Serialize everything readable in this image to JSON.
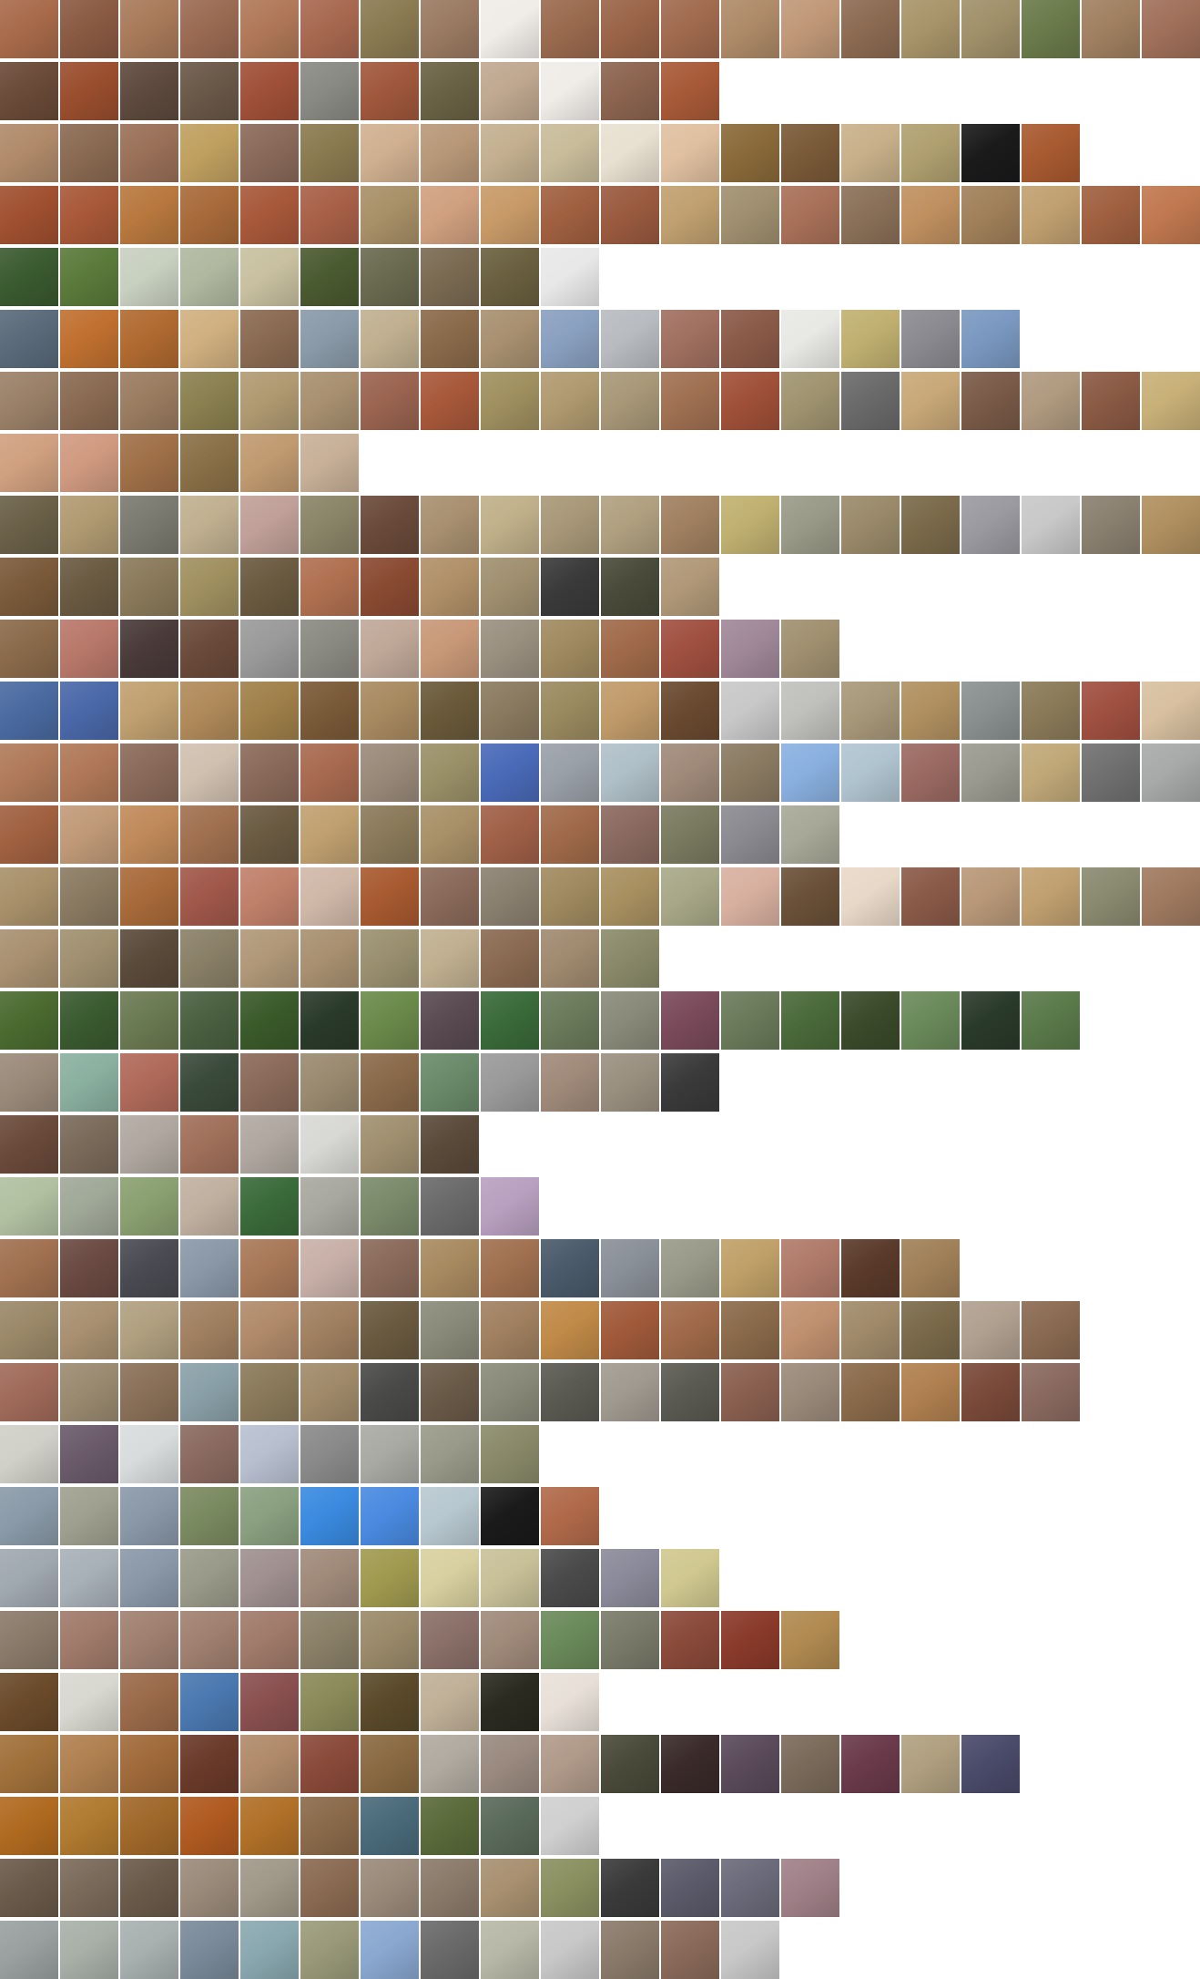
{
  "mosaic": {
    "description_free": true,
    "rows": [
      {
        "count": 20,
        "colors": [
          "#a86a4a",
          "#8a5a42",
          "#a87a5a",
          "#9a6a52",
          "#b07858",
          "#a86850",
          "#8a7a52",
          "#9a7a62",
          "#f0ece8",
          "#9a6a4e",
          "#9a6448",
          "#a06a4e",
          "#ae8a68",
          "#c09878",
          "#8c6a52",
          "#a8946a",
          "#a0906a",
          "#6a7a4a",
          "#a08060",
          "#a0705a"
        ]
      },
      {
        "count": 12,
        "colors": [
          "#6a4a38",
          "#9a4e2e",
          "#5e4a3e",
          "#6a5848",
          "#a05038",
          "#8a8a84",
          "#a0583c",
          "#6a6244",
          "#c0a890",
          "#f0ece8",
          "#8c6450",
          "#a85a38"
        ]
      },
      {
        "count": 18,
        "colors": [
          "#b08a6a",
          "#8a6a52",
          "#9a7058",
          "#c0a060",
          "#8a6a5a",
          "#8a7a50",
          "#d0b090",
          "#b89878",
          "#c4b090",
          "#c8bc9a",
          "#e8e0d0",
          "#e0c0a0",
          "#8a6a3a",
          "#7a5a38",
          "#c8b08a",
          "#b0a070",
          "#1a1a1a",
          "#a85a30"
        ]
      },
      {
        "count": 20,
        "colors": [
          "#a05030",
          "#a85838",
          "#b8783e",
          "#a86a3a",
          "#a8583a",
          "#a86048",
          "#a89068",
          "#d0a080",
          "#c89a68",
          "#a06040",
          "#9a5a40",
          "#c0a070",
          "#a09070",
          "#a87058",
          "#8a7058",
          "#c09060",
          "#a0805a",
          "#c0a070",
          "#a06040",
          "#c07850"
        ]
      },
      {
        "count": 10,
        "colors": [
          "#3a5a30",
          "#5a7a3a",
          "#c8d0c0",
          "#b0b8a0",
          "#c8c0a0",
          "#4a5a30",
          "#6a6a50",
          "#7a6a52",
          "#6a6040",
          "#e8e8e8"
        ]
      },
      {
        "count": 17,
        "colors": [
          "#5a6a7a",
          "#c07030",
          "#b06a30",
          "#d0b080",
          "#8a6a52",
          "#8a9aa8",
          "#c0b090",
          "#8a6a4a",
          "#a89070",
          "#8aa0c0",
          "#b8bcc0",
          "#a07060",
          "#8a5a48",
          "#e8e8e4",
          "#c0b070",
          "#8a8a90",
          "#7a98c0"
        ]
      },
      {
        "count": 20,
        "colors": [
          "#9a8068",
          "#8a6a52",
          "#9a7c60",
          "#8a8050",
          "#b09a72",
          "#a89070",
          "#9a6450",
          "#a8583a",
          "#a09060",
          "#b09a70",
          "#a89878",
          "#a07052",
          "#a05038",
          "#a09470",
          "#6a6a6a",
          "#c8a878",
          "#7a5a48",
          "#b09a80",
          "#8a5a44",
          "#c8b078"
        ]
      },
      {
        "count": 6,
        "colors": [
          "#d0a080",
          "#d09a80",
          "#a07048",
          "#8a7048",
          "#c09a70",
          "#c8b098"
        ]
      },
      {
        "count": 20,
        "colors": [
          "#6a6048",
          "#b09a72",
          "#7a7a70",
          "#c0b090",
          "#c0a098",
          "#8a8468",
          "#6a4a3a",
          "#a89070",
          "#c0b08a",
          "#a89878",
          "#b0a080",
          "#a08060",
          "#c0b070",
          "#9a9a88",
          "#9a8a6a",
          "#7a6a4a",
          "#9a9aa0",
          "#c8c8c8",
          "#8a8070",
          "#b09060"
        ]
      },
      {
        "count": 12,
        "colors": [
          "#7a5a3a",
          "#6a5a42",
          "#8a7a5a",
          "#a09060",
          "#6a5a40",
          "#b07050",
          "#8a4a32",
          "#b09068",
          "#a09070",
          "#3a3a3a",
          "#4a4a3a",
          "#b09878"
        ]
      },
      {
        "count": 14,
        "colors": [
          "#8a6a4a",
          "#b8786a",
          "#4a3a3a",
          "#6a4a3a",
          "#9a9a9a",
          "#8a8a82",
          "#c0a898",
          "#c89878",
          "#9a9080",
          "#a08a60",
          "#a06a4a",
          "#a05040",
          "#a08898",
          "#a09070"
        ]
      },
      {
        "count": 20,
        "colors": [
          "#4a6aa0",
          "#4a68a8",
          "#c0a070",
          "#b08a5a",
          "#a0804a",
          "#7a5a38",
          "#a88a60",
          "#6a5a3a",
          "#8a7a60",
          "#9a8a60",
          "#c09a6a",
          "#6a4a30",
          "#c8c8c8",
          "#c0c0bc",
          "#a8987a",
          "#b09060",
          "#8a9090",
          "#8a7a58",
          "#a05040",
          "#d8c0a0"
        ]
      },
      {
        "count": 20,
        "colors": [
          "#b07a5a",
          "#b07858",
          "#8a6a5a",
          "#d0c0b0",
          "#8a6a5a",
          "#a86a50",
          "#9a8a7a",
          "#9a9068",
          "#4a6ab8",
          "#9aa0a8",
          "#b0c0c8",
          "#a08a7a",
          "#8a7a62",
          "#8ab0e0",
          "#b0c4d0",
          "#9a6a62",
          "#9a9a90",
          "#c0a878",
          "#707070",
          "#a8aaaa"
        ]
      },
      {
        "count": 14,
        "colors": [
          "#a06040",
          "#c09a78",
          "#c08a5a",
          "#a07050",
          "#6a5a42",
          "#c0a070",
          "#8a7a5a",
          "#a89068",
          "#a06048",
          "#a06a4a",
          "#8a6a60",
          "#7a7a60",
          "#8a8a90",
          "#a8a898"
        ]
      },
      {
        "count": 20,
        "colors": [
          "#a8906a",
          "#8a7a62",
          "#a86a3a",
          "#a0584a",
          "#c0806a",
          "#d0b8a8",
          "#a85a30",
          "#8a6a5a",
          "#8a8070",
          "#a08a60",
          "#a89060",
          "#a8a888",
          "#d8b0a0",
          "#6a5038",
          "#e8d8c8",
          "#8a5a48",
          "#b89878",
          "#c0a070",
          "#8a8a70",
          "#a07a60"
        ]
      },
      {
        "count": 11,
        "colors": [
          "#a89070",
          "#a09070",
          "#5a4a3a",
          "#8a8068",
          "#b09878",
          "#a89070",
          "#9a9070",
          "#c0b090",
          "#8a6a52",
          "#a08a70",
          "#8a8a6a"
        ]
      },
      {
        "count": 18,
        "colors": [
          "#4a6a30",
          "#3a5a30",
          "#6a7a52",
          "#4a6040",
          "#3a5a2a",
          "#2a3a2a",
          "#6a8a4a",
          "#5a4a52",
          "#3a6a3a",
          "#6a7a5a",
          "#8a8a7a",
          "#7a4a5a",
          "#6a7a5a",
          "#4a6a3a",
          "#3a4a2a",
          "#6a8a5a",
          "#2a3a2a",
          "#5a7a4a"
        ]
      },
      {
        "count": 12,
        "colors": [
          "#9a8a7a",
          "#8ab0a0",
          "#b06a5a",
          "#3a4a3a",
          "#8a6a5a",
          "#9a8a70",
          "#8a6a4a",
          "#6a8a6a",
          "#9a9a9a",
          "#a08a7a",
          "#9a9080",
          "#3a3a3a"
        ]
      },
      {
        "count": 8,
        "colors": [
          "#6a4a3a",
          "#7a6a5a",
          "#b0a8a0",
          "#a0705a",
          "#b0a8a0",
          "#d8d8d4",
          "#a09070",
          "#5a4a3a"
        ]
      },
      {
        "count": 9,
        "colors": [
          "#b0c0a0",
          "#a0a898",
          "#8aa070",
          "#c0b0a0",
          "#3a6a3a",
          "#a8a8a0",
          "#7a8a6a",
          "#6a6a6a",
          "#b8a0c0"
        ]
      },
      {
        "count": 16,
        "colors": [
          "#a07050",
          "#6a4a42",
          "#4a4a52",
          "#8a98a8",
          "#a87858",
          "#c8b0a8",
          "#8a6a5a",
          "#a88a60",
          "#a07050",
          "#4a5a6a",
          "#8a9098",
          "#9a9a8a",
          "#c0a068",
          "#b07a6a",
          "#5a3a2a",
          "#a08058"
        ]
      },
      {
        "count": 18,
        "colors": [
          "#9a8868",
          "#a89070",
          "#b0a080",
          "#a08060",
          "#b08a6a",
          "#a08060",
          "#6a5a40",
          "#8a8a7a",
          "#a08060",
          "#c08a48",
          "#a05a3a",
          "#a06a4a",
          "#8a6a4a",
          "#c09070",
          "#a08a6a",
          "#7a6a4a",
          "#b0a090",
          "#8a6a52"
        ]
      },
      {
        "count": 18,
        "colors": [
          "#a06a5a",
          "#9a8a70",
          "#8a7058",
          "#8aa0a8",
          "#8a7a5a",
          "#a08a6a",
          "#4a4a48",
          "#6a5a48",
          "#8a8a7a",
          "#5a5a52",
          "#a09a90",
          "#5a5a52",
          "#8a6050",
          "#9a8a7a",
          "#8a6a4a",
          "#b08050",
          "#7a4a3a",
          "#8a6a60"
        ]
      },
      {
        "count": 9,
        "colors": [
          "#d0d0c8",
          "#6a5a6a",
          "#d8dcdc",
          "#8a6a60",
          "#b8c0d0",
          "#8a8a8a",
          "#aaaaa4",
          "#9a9a8a",
          "#8a8a6a"
        ]
      },
      {
        "count": 10,
        "colors": [
          "#8a9aa8",
          "#a0a090",
          "#8a98a8",
          "#7a8a60",
          "#8aa080",
          "#3a8ae0",
          "#4a8ae0",
          "#b8c8d0",
          "#1a1a1a",
          "#b06a4a"
        ]
      },
      {
        "count": 12,
        "colors": [
          "#a0a8b0",
          "#a8b0b8",
          "#8a98a8",
          "#9a9a8a",
          "#a09090",
          "#a08a7a",
          "#a09a50",
          "#d8d0a0",
          "#c8c098",
          "#4a4a4a",
          "#8a8a9a",
          "#d0c890"
        ]
      },
      {
        "count": 14,
        "colors": [
          "#8a7a6a",
          "#a07a6a",
          "#a08070",
          "#a08070",
          "#a07a6a",
          "#8a8068",
          "#9a8a6a",
          "#8a7068",
          "#a08a7a",
          "#6a8a5a",
          "#7a7a6a",
          "#8a4a3a",
          "#8a3a2a",
          "#b08a50"
        ]
      },
      {
        "count": 10,
        "colors": [
          "#6a4a2a",
          "#d8d8d0",
          "#9a6a4a",
          "#4a78b0",
          "#8a5050",
          "#8a8a5a",
          "#5a4a2a",
          "#c0b098",
          "#2a2a20",
          "#e8e0d8"
        ]
      },
      {
        "count": 17,
        "colors": [
          "#a0703a",
          "#b08050",
          "#a06a3a",
          "#6a3a2a",
          "#b08a6a",
          "#8a4a3a",
          "#8a6a42",
          "#b0aaa0",
          "#9a8a80",
          "#b09a8a",
          "#4a4a3a",
          "#3a2a2a",
          "#5a4a5a",
          "#7a6a5a",
          "#6a3a4a",
          "#b0a080",
          "#4a4a6a"
        ]
      },
      {
        "count": 10,
        "colors": [
          "#b06a20",
          "#b07a30",
          "#a0682a",
          "#b05a20",
          "#b07028",
          "#8a6a4a",
          "#4a6a7a",
          "#5a6a3a",
          "#5a6a5a",
          "#d0d0d0"
        ]
      },
      {
        "count": 14,
        "colors": [
          "#6a5a4a",
          "#7a6a5a",
          "#6a5a4a",
          "#9a8a7a",
          "#a09888",
          "#8a6a52",
          "#9a8a7a",
          "#8a7a6a",
          "#a89070",
          "#8a9060",
          "#3a3a3a",
          "#5a5a6a",
          "#6a6a7a",
          "#a08088"
        ]
      },
      {
        "count": 13,
        "colors": [
          "#9aa0a0",
          "#a8b0a8",
          "#a8b0b0",
          "#7a8a9a",
          "#8aa8b0",
          "#9a9a7a",
          "#8aa8d0",
          "#6a6a6a",
          "#b8b8a8",
          "#c8c8c8",
          "#8a7a6a",
          "#8a6a5a",
          "#c8c8c8"
        ]
      }
    ]
  }
}
